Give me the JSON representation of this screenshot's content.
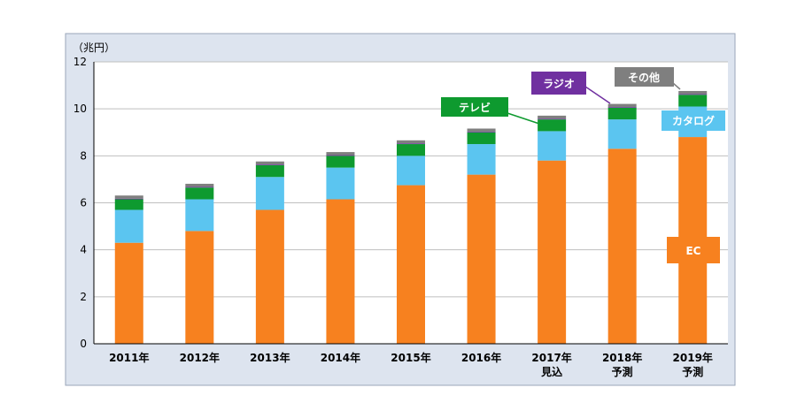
{
  "chart_data": {
    "type": "bar",
    "stacked": true,
    "unit_label": "（兆円）",
    "categories": [
      "2011年",
      "2012年",
      "2013年",
      "2014年",
      "2015年",
      "2016年",
      "2017年\n見込",
      "2018年\n予測",
      "2019年\n予測"
    ],
    "ylim": [
      0,
      12
    ],
    "yticks": [
      0,
      2,
      4,
      6,
      8,
      10,
      12
    ],
    "grid": true,
    "series": [
      {
        "name": "EC",
        "color": "#f7811f",
        "values": [
          4.3,
          4.8,
          5.7,
          6.15,
          6.75,
          7.2,
          7.8,
          8.3,
          8.8
        ]
      },
      {
        "name": "カタログ",
        "color": "#5bc5f0",
        "values": [
          1.4,
          1.35,
          1.4,
          1.35,
          1.25,
          1.3,
          1.25,
          1.25,
          1.3
        ]
      },
      {
        "name": "テレビ",
        "color": "#0e9a2f",
        "values": [
          0.45,
          0.5,
          0.5,
          0.5,
          0.5,
          0.5,
          0.5,
          0.5,
          0.5
        ]
      },
      {
        "name": "ラジオ",
        "color": "#7030a0",
        "values": [
          0.03,
          0.03,
          0.03,
          0.03,
          0.03,
          0.03,
          0.03,
          0.03,
          0.03
        ]
      },
      {
        "name": "その他",
        "color": "#7f7f7f",
        "values": [
          0.13,
          0.13,
          0.13,
          0.13,
          0.13,
          0.13,
          0.13,
          0.13,
          0.13
        ]
      }
    ],
    "labels": {
      "ec": "EC",
      "catalog": "カタログ",
      "tv": "テレビ",
      "radio": "ラジオ",
      "other": "その他"
    },
    "colors": {
      "background": "#dde4ef",
      "plot": "#ffffff",
      "grid": "#bfbfbf",
      "ec": "#f7811f",
      "catalog": "#5bc5f0",
      "tv": "#0e9a2f",
      "radio": "#7030a0",
      "other": "#7f7f7f"
    }
  }
}
